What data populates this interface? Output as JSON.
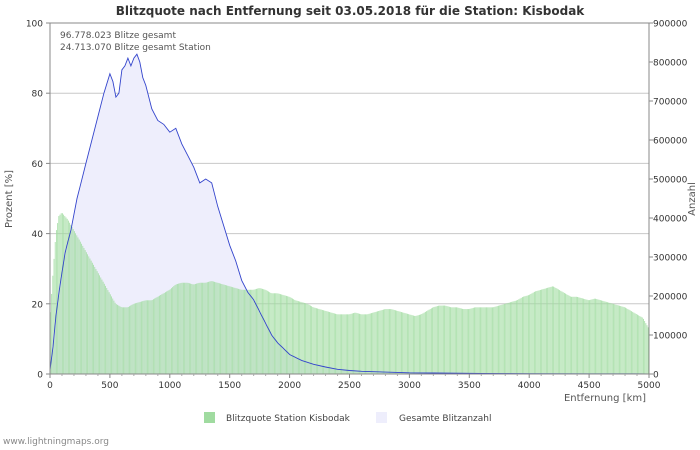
{
  "chart_data": {
    "type": "area",
    "title": "Blitzquote nach Entfernung seit 03.05.2018 für die Station: Kisbodak",
    "xlabel": "Entfernung   [km]",
    "ylabel_left": "Prozent   [%]",
    "ylabel_right": "Anzahl",
    "xlim": [
      0,
      5000
    ],
    "ylim_left": [
      0,
      100
    ],
    "ylim_right": [
      0,
      900000
    ],
    "x_ticks": [
      "0",
      "500",
      "1000",
      "1500",
      "2000",
      "2500",
      "3000",
      "3500",
      "4000",
      "4500",
      "5000"
    ],
    "y_left_ticks": [
      "0",
      "20",
      "40",
      "60",
      "80",
      "100"
    ],
    "y_right_ticks": [
      "0",
      "100000",
      "200000",
      "300000",
      "400000",
      "500000",
      "600000",
      "700000",
      "800000",
      "900000"
    ],
    "annotations": [
      "96.778.023 Blitze gesamt",
      "24.713.070 Blitze gesamt Station"
    ],
    "legend": [
      "Blitzquote Station Kisbodak",
      "Gesamte Blitzanzahl"
    ],
    "legend_position": "bottom",
    "colors": {
      "quote": "#a0dba0",
      "total_fill": "#eeeefc",
      "total_line": "#3344cc",
      "grid": "#c8c8c8",
      "frame": "#888888"
    },
    "series": [
      {
        "name": "Blitzquote Station Kisbodak",
        "axis": "left",
        "unit": "%",
        "x": [
          0,
          25,
          50,
          75,
          100,
          125,
          150,
          200,
          250,
          300,
          350,
          400,
          450,
          500,
          550,
          600,
          650,
          700,
          750,
          800,
          850,
          900,
          950,
          1000,
          1050,
          1100,
          1150,
          1200,
          1250,
          1300,
          1350,
          1400,
          1450,
          1500,
          1550,
          1600,
          1650,
          1700,
          1750,
          1800,
          1850,
          1900,
          1950,
          2000,
          2050,
          2100,
          2150,
          2200,
          2250,
          2300,
          2350,
          2400,
          2450,
          2500,
          2550,
          2600,
          2650,
          2700,
          2750,
          2800,
          2850,
          2900,
          2950,
          3000,
          3050,
          3100,
          3150,
          3200,
          3250,
          3300,
          3350,
          3400,
          3450,
          3500,
          3550,
          3600,
          3650,
          3700,
          3750,
          3800,
          3850,
          3900,
          3950,
          4000,
          4050,
          4100,
          4150,
          4200,
          4250,
          4300,
          4350,
          4400,
          4450,
          4500,
          4550,
          4600,
          4650,
          4700,
          4750,
          4800,
          4850,
          4900,
          4950,
          5000
        ],
        "values": [
          15,
          28,
          40,
          45,
          46,
          45,
          44,
          41,
          38,
          35,
          32,
          29,
          26,
          23,
          20,
          19,
          19,
          20,
          20.5,
          21,
          21,
          22,
          23,
          24,
          25.5,
          26,
          26,
          25.5,
          26,
          26,
          26.5,
          26,
          25.5,
          25,
          24.5,
          24,
          24,
          24,
          24.5,
          24,
          23,
          23,
          22.5,
          22,
          21,
          20.5,
          20,
          19,
          18.5,
          18,
          17.5,
          17,
          17,
          17,
          17.5,
          17,
          17,
          17.5,
          18,
          18.5,
          18.5,
          18,
          17.5,
          17,
          16.5,
          17,
          18,
          19,
          19.5,
          19.5,
          19,
          19,
          18.5,
          18.5,
          19,
          19,
          19,
          19,
          19.5,
          20,
          20.5,
          21,
          22,
          22.5,
          23.5,
          24,
          24.5,
          25,
          24,
          23,
          22,
          22,
          21.5,
          21,
          21.5,
          21,
          20.5,
          20,
          19.5,
          19,
          18,
          17,
          16,
          13
        ]
      },
      {
        "name": "Gesamte Blitzanzahl",
        "axis": "right",
        "unit": "count",
        "x": [
          0,
          25,
          50,
          75,
          100,
          125,
          150,
          175,
          200,
          225,
          250,
          300,
          350,
          400,
          450,
          500,
          525,
          550,
          575,
          600,
          625,
          650,
          675,
          700,
          725,
          750,
          775,
          800,
          850,
          900,
          950,
          1000,
          1050,
          1100,
          1150,
          1200,
          1250,
          1300,
          1350,
          1400,
          1450,
          1500,
          1550,
          1600,
          1650,
          1700,
          1750,
          1800,
          1850,
          1900,
          1950,
          2000,
          2100,
          2200,
          2300,
          2400,
          2500,
          2600,
          2700,
          2800,
          2900,
          3000,
          3200,
          3400,
          3600,
          3800,
          4000,
          4500,
          5000
        ],
        "values": [
          10000,
          70000,
          150000,
          210000,
          260000,
          310000,
          340000,
          370000,
          410000,
          450000,
          480000,
          540000,
          600000,
          660000,
          720000,
          770000,
          750000,
          710000,
          720000,
          780000,
          790000,
          810000,
          790000,
          810000,
          820000,
          800000,
          760000,
          740000,
          680000,
          650000,
          640000,
          620000,
          630000,
          590000,
          560000,
          530000,
          490000,
          500000,
          490000,
          430000,
          380000,
          330000,
          290000,
          240000,
          210000,
          190000,
          160000,
          130000,
          100000,
          80000,
          65000,
          50000,
          35000,
          25000,
          18000,
          12000,
          9000,
          7000,
          6000,
          5000,
          4000,
          3000,
          2500,
          2000,
          1500,
          1000,
          800,
          500,
          300
        ]
      }
    ]
  },
  "footer": "www.lightningmaps.org"
}
